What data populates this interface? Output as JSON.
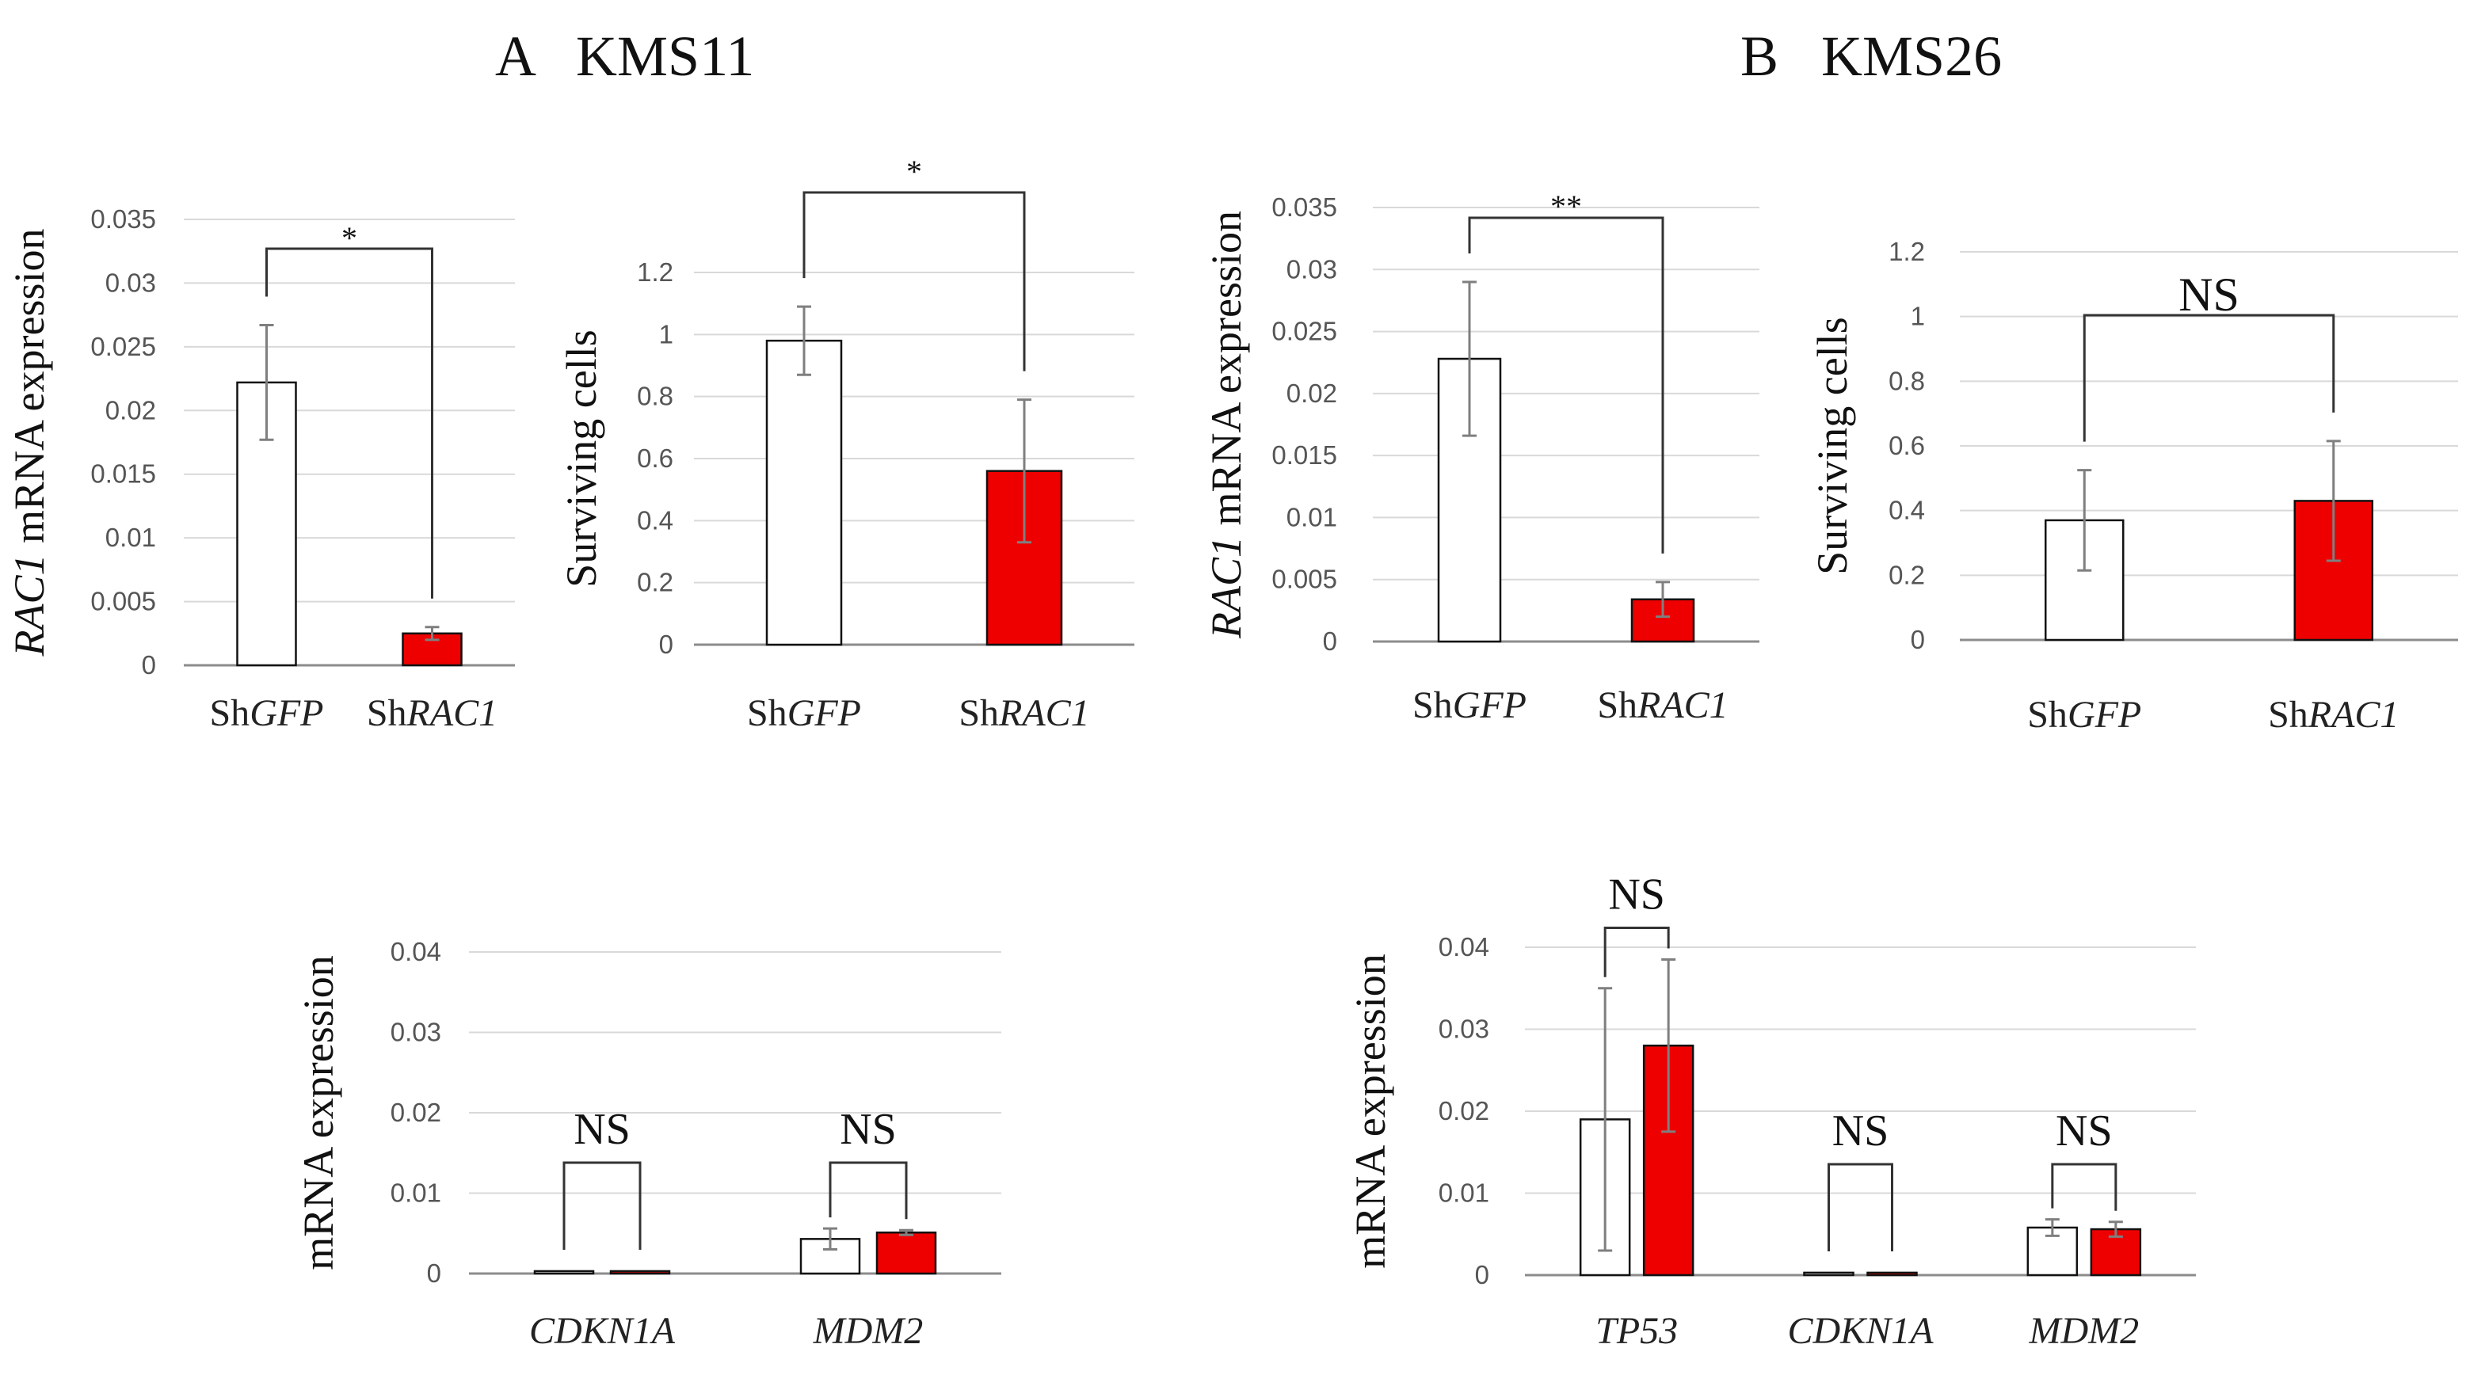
{
  "figure": {
    "panel_a_title": "A   KMS11",
    "panel_b_title": "B   KMS26"
  },
  "chart_data": [
    {
      "id": "a1",
      "type": "bar",
      "ylabel": [
        "RAC1",
        " mRNA expression"
      ],
      "ylim": [
        0,
        0.035
      ],
      "yticks": [
        0,
        0.005,
        0.01,
        0.015,
        0.02,
        0.025,
        0.03,
        0.035
      ],
      "ytick_labels": [
        "0",
        "0.005",
        "0.01",
        "0.015",
        "0.02",
        "0.025",
        "0.03",
        "0.035"
      ],
      "categories": [
        [
          "Sh",
          "GFP"
        ],
        [
          "Sh",
          "RAC1"
        ]
      ],
      "values": [
        0.0222,
        0.0025
      ],
      "errors": [
        0.0045,
        0.0005
      ],
      "colors": [
        "#ffffff",
        "#ee0000"
      ],
      "significance": [
        {
          "from": 0,
          "to": 1,
          "label": "*"
        }
      ]
    },
    {
      "id": "a2",
      "type": "bar",
      "ylabel": [
        "",
        "Surviving cells"
      ],
      "ylim": [
        0,
        1.2
      ],
      "yticks": [
        0,
        0.2,
        0.4,
        0.6,
        0.8,
        1,
        1.2
      ],
      "ytick_labels": [
        "0",
        "0.2",
        "0.4",
        "0.6",
        "0.8",
        "1",
        "1.2"
      ],
      "categories": [
        [
          "Sh",
          "GFP"
        ],
        [
          "Sh",
          "RAC1"
        ]
      ],
      "values": [
        0.98,
        0.56
      ],
      "errors": [
        0.11,
        0.23
      ],
      "colors": [
        "#ffffff",
        "#ee0000"
      ],
      "significance": [
        {
          "from": 0,
          "to": 1,
          "label": "*"
        }
      ]
    },
    {
      "id": "b1",
      "type": "bar",
      "ylabel": [
        "RAC1",
        " mRNA expression"
      ],
      "ylim": [
        0,
        0.035
      ],
      "yticks": [
        0,
        0.005,
        0.01,
        0.015,
        0.02,
        0.025,
        0.03,
        0.035
      ],
      "ytick_labels": [
        "0",
        "0.005",
        "0.01",
        "0.015",
        "0.02",
        "0.025",
        "0.03",
        "0.035"
      ],
      "categories": [
        [
          "Sh",
          "GFP"
        ],
        [
          "Sh",
          "RAC1"
        ]
      ],
      "values": [
        0.0228,
        0.0034
      ],
      "errors": [
        0.0062,
        0.0014
      ],
      "colors": [
        "#ffffff",
        "#ee0000"
      ],
      "significance": [
        {
          "from": 0,
          "to": 1,
          "label": "**"
        }
      ]
    },
    {
      "id": "b2",
      "type": "bar",
      "ylabel": [
        "",
        "Surviving cells"
      ],
      "ylim": [
        0,
        1.2
      ],
      "yticks": [
        0,
        0.2,
        0.4,
        0.6,
        0.8,
        1,
        1.2
      ],
      "ytick_labels": [
        "0",
        "0.2",
        "0.4",
        "0.6",
        "0.8",
        "1",
        "1.2"
      ],
      "categories": [
        [
          "Sh",
          "GFP"
        ],
        [
          "Sh",
          "RAC1"
        ]
      ],
      "values": [
        0.37,
        0.43
      ],
      "errors": [
        0.155,
        0.185
      ],
      "colors": [
        "#ffffff",
        "#ee0000"
      ],
      "significance": [
        {
          "from": 0,
          "to": 1,
          "label": "NS"
        }
      ]
    },
    {
      "id": "a3",
      "type": "bar",
      "ylabel": [
        "",
        "mRNA expression"
      ],
      "ylim": [
        0,
        0.04
      ],
      "yticks": [
        0,
        0.01,
        0.02,
        0.03,
        0.04
      ],
      "ytick_labels": [
        "0",
        "0.01",
        "0.02",
        "0.03",
        "0.04"
      ],
      "categories": [
        "CDKN1A",
        "MDM2"
      ],
      "series": [
        {
          "values": [
            0.0003,
            0.0043
          ],
          "errors": [
            0,
            0.0013
          ],
          "color": "#ffffff"
        },
        {
          "values": [
            0.0003,
            0.0051
          ],
          "errors": [
            0,
            0.0003
          ],
          "color": "#ee0000"
        }
      ],
      "significance": [
        {
          "group": 0,
          "label": "NS"
        },
        {
          "group": 1,
          "label": "NS"
        }
      ]
    },
    {
      "id": "b3",
      "type": "bar",
      "ylabel": [
        "",
        "mRNA expression"
      ],
      "ylim": [
        0,
        0.04
      ],
      "yticks": [
        0,
        0.01,
        0.02,
        0.03,
        0.04
      ],
      "ytick_labels": [
        "0",
        "0.01",
        "0.02",
        "0.03",
        "0.04"
      ],
      "categories": [
        "TP53",
        "CDKN1A",
        "MDM2"
      ],
      "series": [
        {
          "values": [
            0.019,
            0.0003,
            0.0058
          ],
          "errors": [
            0.016,
            0,
            0.001
          ],
          "color": "#ffffff"
        },
        {
          "values": [
            0.028,
            0.0003,
            0.0056
          ],
          "errors": [
            0.0105,
            0,
            0.0009
          ],
          "color": "#ee0000"
        }
      ],
      "significance": [
        {
          "group": 0,
          "label": "NS"
        },
        {
          "group": 1,
          "label": "NS"
        },
        {
          "group": 2,
          "label": "NS"
        }
      ]
    }
  ]
}
